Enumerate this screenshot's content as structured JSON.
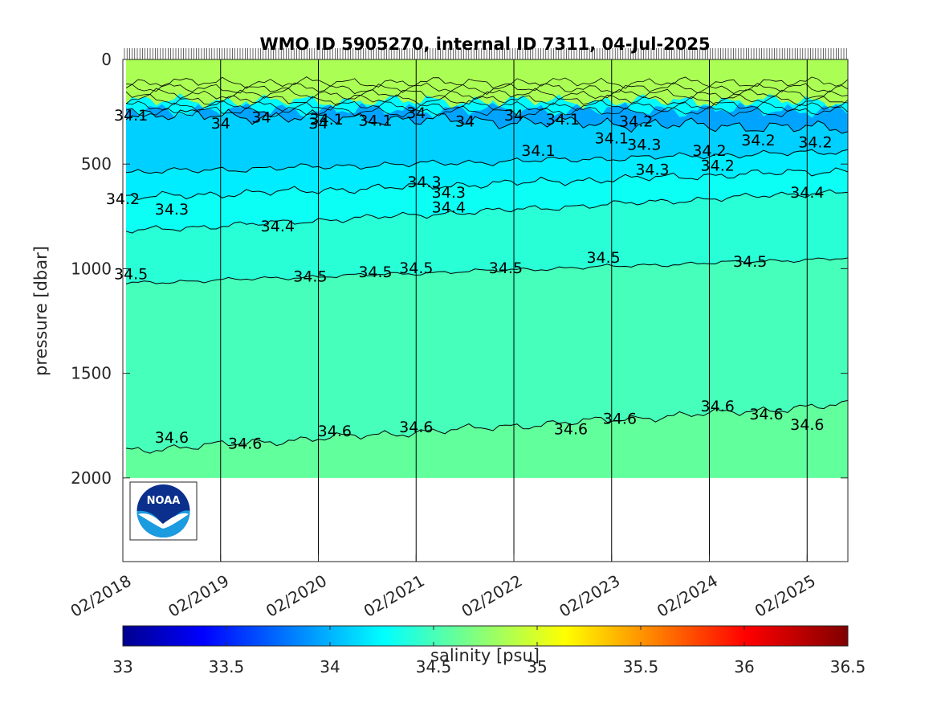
{
  "chart_data": {
    "type": "contour",
    "title": "WMO ID 5905270, internal ID 7311, 04-Jul-2025",
    "ylabel": "pressure [dbar]",
    "colorbar_label": "salinity [psu]",
    "y_reversed": true,
    "ylim": [
      0,
      2400
    ],
    "xlim": [
      "2018-02",
      "2025-07"
    ],
    "data_max_pressure": 2000,
    "y_ticks": [
      0,
      500,
      1000,
      1500,
      2000
    ],
    "y_tick_labels": [
      "0",
      "500",
      "1000",
      "1500",
      "2000"
    ],
    "x_ticks": [
      "2018-02",
      "2019-02",
      "2020-02",
      "2021-02",
      "2022-02",
      "2023-02",
      "2024-02",
      "2025-02"
    ],
    "x_tick_labels": [
      "02/2018",
      "02/2019",
      "02/2020",
      "02/2021",
      "02/2022",
      "02/2023",
      "02/2024",
      "02/2025"
    ],
    "vertical_gridlines": [
      "2019-02",
      "2020-02",
      "2021-02",
      "2022-02",
      "2023-02",
      "2024-02",
      "2025-02"
    ],
    "colorbar": {
      "min": 33,
      "max": 36.5,
      "colormap": "jet",
      "ticks": [
        33,
        33.5,
        34,
        34.5,
        35,
        35.5,
        36,
        36.5
      ],
      "tick_labels": [
        "33",
        "33.5",
        "34",
        "34.5",
        "35",
        "35.5",
        "36",
        "36.5"
      ]
    },
    "contour_levels": [
      {
        "level": 34.1,
        "depth_left": 260,
        "depth_right": 330,
        "wobble": 40
      },
      {
        "level": 34.2,
        "depth_left": 540,
        "depth_right": 440,
        "wobble": 20
      },
      {
        "level": 34.3,
        "depth_left": 660,
        "depth_right": 530,
        "wobble": 25
      },
      {
        "level": 34.4,
        "depth_left": 820,
        "depth_right": 630,
        "wobble": 20
      },
      {
        "level": 34.5,
        "depth_left": 1070,
        "depth_right": 950,
        "wobble": 12
      },
      {
        "level": 34.6,
        "depth_left": 1870,
        "depth_right": 1650,
        "wobble": 25
      }
    ],
    "contour_labels": [
      {
        "text": "34.1",
        "date": "2018-03",
        "pressure": 270
      },
      {
        "text": "34",
        "date": "2019-02",
        "pressure": 310
      },
      {
        "text": "34",
        "date": "2019-07",
        "pressure": 280
      },
      {
        "text": "34",
        "date": "2020-02",
        "pressure": 310
      },
      {
        "text": "34.1",
        "date": "2020-03",
        "pressure": 290
      },
      {
        "text": "34.1",
        "date": "2020-09",
        "pressure": 295
      },
      {
        "text": "34",
        "date": "2021-02",
        "pressure": 260
      },
      {
        "text": "34",
        "date": "2021-08",
        "pressure": 300
      },
      {
        "text": "34",
        "date": "2022-02",
        "pressure": 270
      },
      {
        "text": "34.1",
        "date": "2022-08",
        "pressure": 290
      },
      {
        "text": "34.1",
        "date": "2022-05",
        "pressure": 440
      },
      {
        "text": "34.1",
        "date": "2023-02",
        "pressure": 380
      },
      {
        "text": "34.2",
        "date": "2023-05",
        "pressure": 300
      },
      {
        "text": "34.2",
        "date": "2024-02",
        "pressure": 440
      },
      {
        "text": "34.2",
        "date": "2024-08",
        "pressure": 390
      },
      {
        "text": "34.2",
        "date": "2025-03",
        "pressure": 400
      },
      {
        "text": "34.3",
        "date": "2023-06",
        "pressure": 410
      },
      {
        "text": "34.3",
        "date": "2023-07",
        "pressure": 530
      },
      {
        "text": "34.2",
        "date": "2024-03",
        "pressure": 510
      },
      {
        "text": "34.2",
        "date": "2018-02",
        "pressure": 670
      },
      {
        "text": "34.3",
        "date": "2018-08",
        "pressure": 720
      },
      {
        "text": "34.3",
        "date": "2021-03",
        "pressure": 590
      },
      {
        "text": "34.3",
        "date": "2021-06",
        "pressure": 640
      },
      {
        "text": "34.4",
        "date": "2021-06",
        "pressure": 710
      },
      {
        "text": "34.4",
        "date": "2019-09",
        "pressure": 800
      },
      {
        "text": "34.4",
        "date": "2025-02",
        "pressure": 640
      },
      {
        "text": "34.5",
        "date": "2018-03",
        "pressure": 1030
      },
      {
        "text": "34.5",
        "date": "2020-01",
        "pressure": 1040
      },
      {
        "text": "34.5",
        "date": "2020-09",
        "pressure": 1020
      },
      {
        "text": "34.5",
        "date": "2021-02",
        "pressure": 1000
      },
      {
        "text": "34.5",
        "date": "2022-01",
        "pressure": 1000
      },
      {
        "text": "34.5",
        "date": "2023-01",
        "pressure": 950
      },
      {
        "text": "34.5",
        "date": "2024-07",
        "pressure": 970
      },
      {
        "text": "34.6",
        "date": "2018-08",
        "pressure": 1810
      },
      {
        "text": "34.6",
        "date": "2019-05",
        "pressure": 1840
      },
      {
        "text": "34.6",
        "date": "2020-04",
        "pressure": 1780
      },
      {
        "text": "34.6",
        "date": "2021-02",
        "pressure": 1760
      },
      {
        "text": "34.6",
        "date": "2022-09",
        "pressure": 1770
      },
      {
        "text": "34.6",
        "date": "2023-03",
        "pressure": 1720
      },
      {
        "text": "34.6",
        "date": "2024-03",
        "pressure": 1660
      },
      {
        "text": "34.6",
        "date": "2024-09",
        "pressure": 1700
      },
      {
        "text": "34.6",
        "date": "2025-02",
        "pressure": 1750
      }
    ]
  },
  "logo": {
    "text": "NOAA"
  }
}
